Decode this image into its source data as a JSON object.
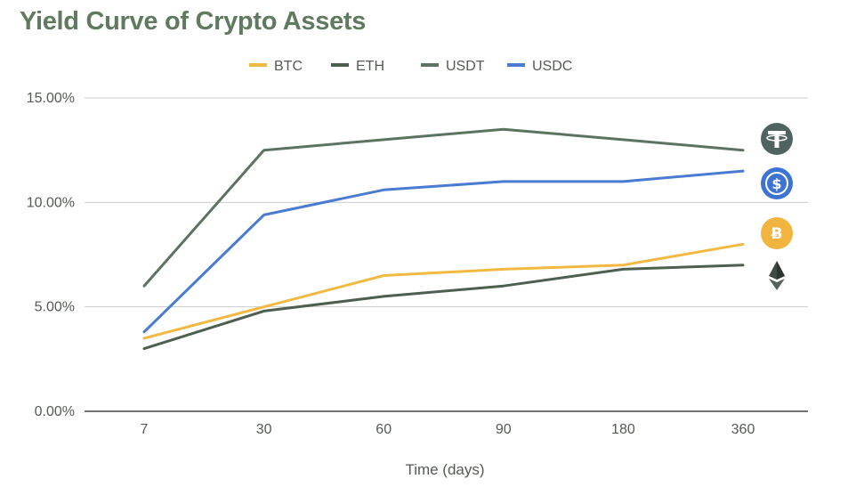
{
  "title": "Yield Curve of Crypto Assets",
  "chart_data": {
    "type": "line",
    "title": "Yield Curve of Crypto Assets",
    "xlabel": "Time (days)",
    "ylabel": "",
    "categories": [
      "7",
      "30",
      "60",
      "90",
      "180",
      "360"
    ],
    "yticks": [
      "0.00%",
      "5.00%",
      "10.00%",
      "15.00%"
    ],
    "ylim": [
      0,
      15
    ],
    "grid": true,
    "legend_position": "top",
    "series": [
      {
        "name": "BTC",
        "color": "#f2b942",
        "icon": "bitcoin-icon",
        "values": [
          3.5,
          5.0,
          6.5,
          6.8,
          7.0,
          8.0
        ]
      },
      {
        "name": "ETH",
        "color": "#4e5f4f",
        "icon": "ethereum-icon",
        "values": [
          3.0,
          4.8,
          5.5,
          6.0,
          6.8,
          7.0
        ]
      },
      {
        "name": "USDT",
        "color": "#5b7360",
        "icon": "tether-icon",
        "values": [
          6.0,
          12.5,
          13.0,
          13.5,
          13.0,
          12.5
        ]
      },
      {
        "name": "USDC",
        "color": "#4a7bd0",
        "icon": "usd-coin-icon",
        "values": [
          3.8,
          9.4,
          10.6,
          11.0,
          11.0,
          11.5
        ]
      }
    ]
  }
}
